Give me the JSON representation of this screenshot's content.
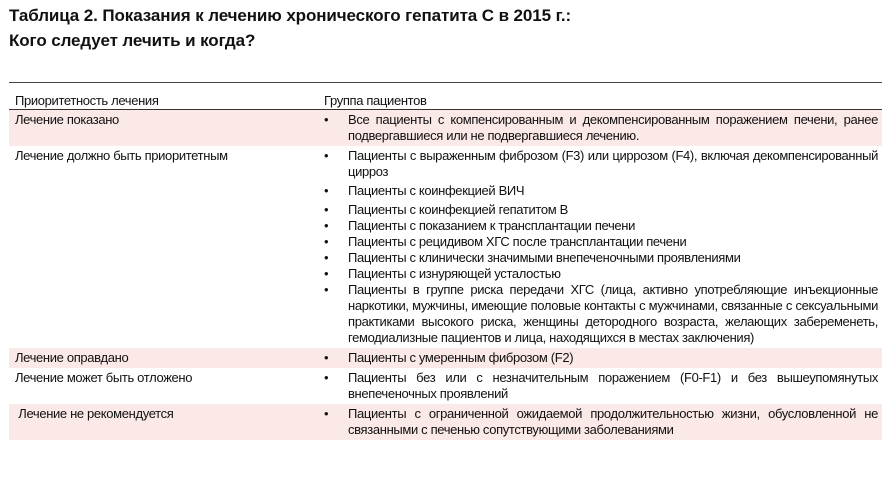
{
  "title": {
    "line1": "Таблица 2. Показания к лечению хронического гепатита С в 2015 г.:",
    "line2": "Кого следует лечить и когда?"
  },
  "table": {
    "headers": [
      "Приоритетность лечения",
      "Группа пациентов"
    ],
    "bullet": "•",
    "rows": [
      {
        "priority": "Лечение показано",
        "highlight": true,
        "items": [
          "Все пациенты с компенсированным и декомпенсированным поражением печени, ранее подвергавшиеся или не подвергавшиеся лечению."
        ]
      },
      {
        "priority": "Лечение должно быть приоритетным",
        "highlight": false,
        "items": [
          "Пациенты с выраженным фиброзом (F3) или циррозом (F4), включая декомпенсированный цирроз",
          "Пациенты с коинфекцией ВИЧ",
          "Пациенты с коинфекцией гепатитом В",
          "Пациенты с показанием к трансплантации печени",
          "Пациенты с рецидивом ХГС после трансплантации печени",
          "Пациенты с клинически значимыми внепеченочными проявлениями",
          "Пациенты с изнуряющей усталостью",
          "Пациенты в группе риска передачи ХГС (лица, активно употребляющие инъекционные наркотики, мужчины, имеющие половые контакты с мужчинами, связанные с сексуальными практиками высокого риска, женщины детородного возраста, желающих забеременеть, гемодиализные пациентов и лица, находящихся в местах заключения)"
        ]
      },
      {
        "priority": "Лечение оправдано",
        "highlight": true,
        "items": [
          "Пациенты с умеренным фиброзом (F2)"
        ]
      },
      {
        "priority": "Лечение может быть отложено",
        "highlight": false,
        "items": [
          "Пациенты без или с незначительным поражением (F0-F1) и без вышеупомянутых внепеченочных проявлений"
        ]
      },
      {
        "priority": " Лечение не рекомендуется",
        "highlight": true,
        "items": [
          "Пациенты с ограниченной ожидаемой продолжительностью жизни, обусловленной не связанными с печенью сопутствующими заболеваниями"
        ]
      }
    ]
  },
  "colors": {
    "highlight": "#fbe9e7"
  }
}
